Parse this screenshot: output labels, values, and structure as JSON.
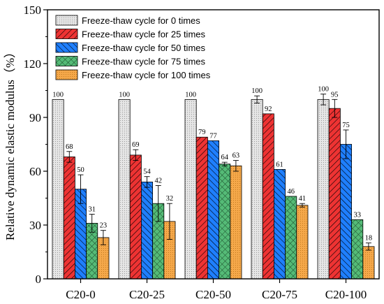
{
  "chart_data": {
    "type": "bar",
    "title": "",
    "xlabel": "",
    "ylabel": "Relative dynamic elastic modulus（%）",
    "ylim": [
      0,
      150
    ],
    "yticks": [
      0,
      30,
      60,
      90,
      120,
      150
    ],
    "grid": false,
    "legend_position": "top-center",
    "categories": [
      "C20-0",
      "C20-25",
      "C20-50",
      "C20-75",
      "C20-100"
    ],
    "series": [
      {
        "name": "Freeze-thaw cycle for 0 times",
        "values": [
          100,
          100,
          100,
          100,
          100
        ],
        "labels": [
          "100",
          "100",
          "100",
          "100",
          "100"
        ],
        "errors": [
          0,
          0,
          0,
          2,
          3
        ],
        "color": "#d9d9d9",
        "pattern": "dots"
      },
      {
        "name": "Freeze-thaw cycle for 25 times",
        "values": [
          68,
          69,
          79,
          92,
          95
        ],
        "labels": [
          "68",
          "69",
          "79",
          "92",
          "95"
        ],
        "errors": [
          3,
          3,
          0,
          0,
          5
        ],
        "color": "#ee3333",
        "pattern": "forward-diagonal"
      },
      {
        "name": "Freeze-thaw cycle for 50 times",
        "values": [
          50,
          54,
          77,
          61,
          75
        ],
        "labels": [
          "50",
          "54",
          "77",
          "61",
          "75"
        ],
        "errors": [
          8,
          3,
          0,
          0,
          8
        ],
        "color": "#1f7fff",
        "pattern": "back-diagonal"
      },
      {
        "name": "Freeze-thaw cycle for 75 times",
        "values": [
          31,
          42,
          64,
          46,
          33
        ],
        "labels": [
          "31",
          "42",
          "64",
          "46",
          "33"
        ],
        "errors": [
          5,
          10,
          1,
          0,
          0
        ],
        "color": "#55bb77",
        "pattern": "crosshatch"
      },
      {
        "name": "Freeze-thaw cycle for 100 times",
        "values": [
          23,
          32,
          63,
          41,
          18
        ],
        "labels": [
          "23",
          "32",
          "63",
          "41",
          "18"
        ],
        "errors": [
          4,
          10,
          3,
          1,
          2
        ],
        "color": "#f5a84a",
        "pattern": "dense-dots"
      }
    ]
  }
}
